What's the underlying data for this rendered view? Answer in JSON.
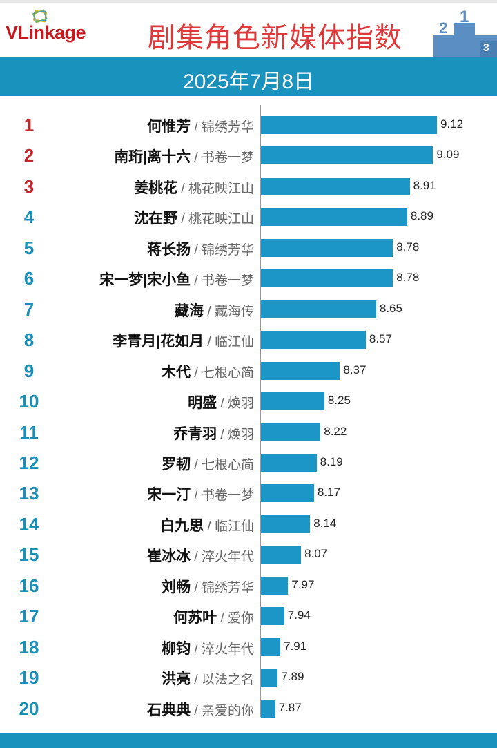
{
  "header": {
    "logo_text": "VLinkage",
    "title": "剧集角色新媒体指数",
    "date": "2025年7月8日"
  },
  "colors": {
    "bar": "#1b96c6",
    "rank_top": "#c0282d",
    "rank_other": "#1a8fb8",
    "band": "#1a92be",
    "title": "#e0393a"
  },
  "chart_data": {
    "type": "bar",
    "orientation": "horizontal",
    "title": "剧集角色新媒体指数",
    "subtitle": "2025年7月8日",
    "xlim": [
      7.76,
      9.12
    ],
    "rows": [
      {
        "rank": "1",
        "name": "何惟芳",
        "show": "锦绣芳华",
        "value": 9.12
      },
      {
        "rank": "2",
        "name": "南珩|离十六",
        "show": "书卷一梦",
        "value": 9.09
      },
      {
        "rank": "3",
        "name": "姜桃花",
        "show": "桃花映江山",
        "value": 8.91
      },
      {
        "rank": "4",
        "name": "沈在野",
        "show": "桃花映江山",
        "value": 8.89
      },
      {
        "rank": "5",
        "name": "蒋长扬",
        "show": "锦绣芳华",
        "value": 8.78
      },
      {
        "rank": "6",
        "name": "宋一梦|宋小鱼",
        "show": "书卷一梦",
        "value": 8.78
      },
      {
        "rank": "7",
        "name": "藏海",
        "show": "藏海传",
        "value": 8.65
      },
      {
        "rank": "8",
        "name": "李青月|花如月",
        "show": "临江仙",
        "value": 8.57
      },
      {
        "rank": "9",
        "name": "木代",
        "show": "七根心简",
        "value": 8.37
      },
      {
        "rank": "10",
        "name": "明盛",
        "show": "焕羽",
        "value": 8.25
      },
      {
        "rank": "11",
        "name": "乔青羽",
        "show": "焕羽",
        "value": 8.22
      },
      {
        "rank": "12",
        "name": "罗韧",
        "show": "七根心简",
        "value": 8.19
      },
      {
        "rank": "13",
        "name": "宋一汀",
        "show": "书卷一梦",
        "value": 8.17
      },
      {
        "rank": "14",
        "name": "白九思",
        "show": "临江仙",
        "value": 8.14
      },
      {
        "rank": "15",
        "name": "崔冰冰",
        "show": "淬火年代",
        "value": 8.07
      },
      {
        "rank": "16",
        "name": "刘畅",
        "show": "锦绣芳华",
        "value": 7.97
      },
      {
        "rank": "17",
        "name": "何苏叶",
        "show": "爱你",
        "value": 7.94
      },
      {
        "rank": "18",
        "name": "柳钧",
        "show": "淬火年代",
        "value": 7.91
      },
      {
        "rank": "19",
        "name": "洪亮",
        "show": "以法之名",
        "value": 7.89
      },
      {
        "rank": "20",
        "name": "石典典",
        "show": "亲爱的你",
        "value": 7.87
      }
    ]
  }
}
